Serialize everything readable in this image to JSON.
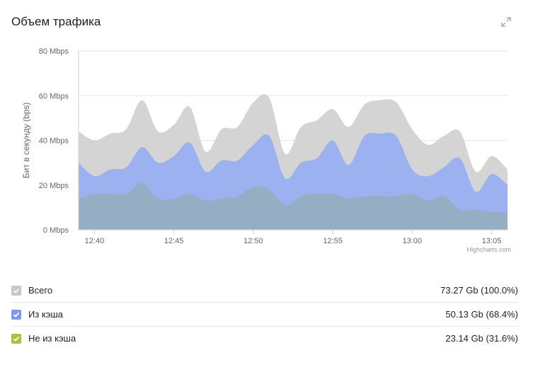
{
  "header": {
    "title": "Объем трафика",
    "expand_icon": "expand-icon"
  },
  "colors": {
    "total": "#d4d4d4",
    "cache": "#9cb1ef",
    "noncache": "#95aec4",
    "legend_noncache": "#a6c33c"
  },
  "chart_data": {
    "type": "area",
    "title": "",
    "ylabel": "Бит в секунду (bps)",
    "yunit": "Mbps",
    "ylim": [
      0,
      80
    ],
    "yticks": [
      "0 Mbps",
      "20 Mbps",
      "40 Mbps",
      "60 Mbps",
      "80 Mbps"
    ],
    "xticks": [
      "12:40",
      "12:45",
      "12:50",
      "12:55",
      "13:00",
      "13:05"
    ],
    "credit": "Highcharts.com",
    "x": [
      "12:39",
      "12:40",
      "12:41",
      "12:42",
      "12:43",
      "12:44",
      "12:45",
      "12:46",
      "12:47",
      "12:48",
      "12:49",
      "12:50",
      "12:51",
      "12:52",
      "12:53",
      "12:54",
      "12:55",
      "12:56",
      "12:57",
      "12:58",
      "12:59",
      "13:00",
      "13:01",
      "13:02",
      "13:03",
      "13:04",
      "13:05",
      "13:06"
    ],
    "series": [
      {
        "name": "Всего",
        "values": [
          44,
          40,
          43,
          45,
          58,
          44,
          47,
          55,
          35,
          45,
          46,
          57,
          59,
          34,
          46,
          49,
          54,
          46,
          56,
          58,
          57,
          45,
          38,
          42,
          44,
          26,
          33,
          27
        ]
      },
      {
        "name": "Из кэша",
        "values": [
          30,
          24,
          27,
          28,
          37,
          30,
          33,
          39,
          26,
          31,
          31,
          38,
          42,
          23,
          30,
          32,
          40,
          29,
          42,
          43,
          42,
          27,
          24,
          28,
          32,
          17,
          25,
          20
        ]
      },
      {
        "name": "Не из кэша",
        "values": [
          14,
          16,
          16,
          16,
          21,
          14,
          14,
          16,
          13,
          14,
          15,
          19,
          18,
          11,
          15,
          16,
          16,
          14,
          15,
          15,
          15,
          16,
          13,
          15,
          9,
          9,
          8,
          8
        ]
      }
    ]
  },
  "legend": [
    {
      "label": "Всего",
      "value": "73.27 Gb (100.0%)",
      "checked": true
    },
    {
      "label": "Из кэша",
      "value": "50.13 Gb (68.4%)",
      "checked": true
    },
    {
      "label": "Не из кэша",
      "value": "23.14 Gb (31.6%)",
      "checked": true
    }
  ]
}
